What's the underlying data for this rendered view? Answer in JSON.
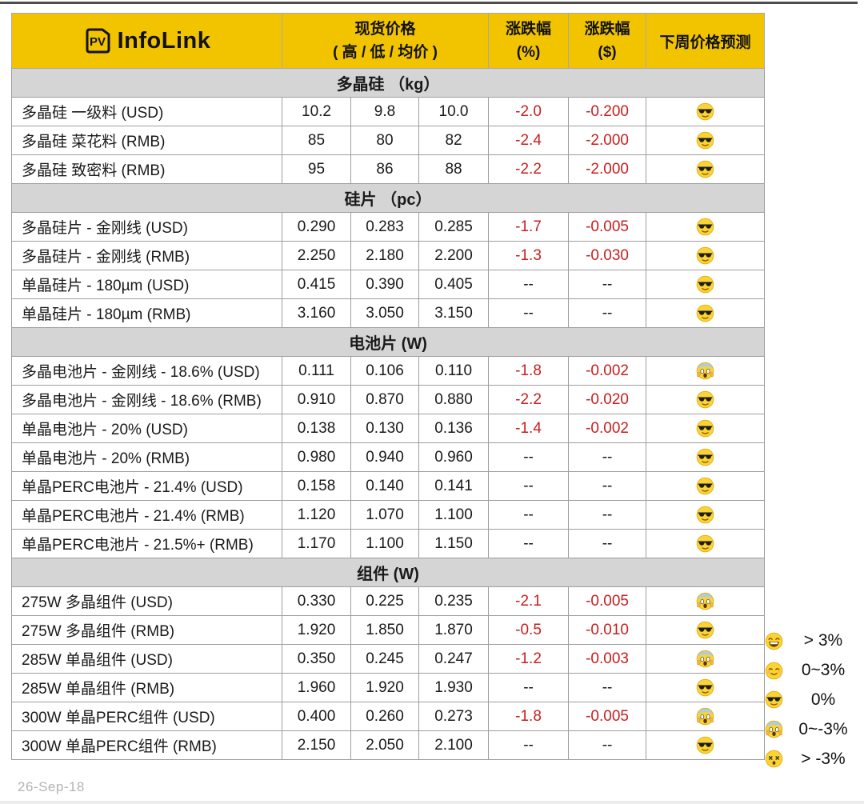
{
  "header": {
    "logo": {
      "pv": "PV",
      "infolink": "InfoLink"
    },
    "spot_price_title": "现货价格",
    "spot_price_subtitle": "( 高 / 低 / 均价 )",
    "change_pct_title": "涨跌幅",
    "change_pct_unit": "(%)",
    "change_usd_title": "涨跌幅",
    "change_usd_unit": "($)",
    "forecast_title": "下周价格预测"
  },
  "colors": {
    "header_yellow": "#F2C400",
    "section_gray": "#D5D5D5",
    "negative_red": "#C81E1E",
    "border_gray": "#9e9e9e",
    "emoji_yellow": "#FBD433"
  },
  "table": {
    "sections": [
      {
        "title": "多晶硅 （kg）",
        "rows": [
          {
            "name": "多晶硅 一级料 (USD)",
            "high": "10.2",
            "low": "9.8",
            "avg": "10.0",
            "pct": "-2.0",
            "usd": "-0.200",
            "forecast": "sunglasses"
          },
          {
            "name": "多晶硅 菜花料 (RMB)",
            "high": "85",
            "low": "80",
            "avg": "82",
            "pct": "-2.4",
            "usd": "-2.000",
            "forecast": "sunglasses"
          },
          {
            "name": "多晶硅 致密料 (RMB)",
            "high": "95",
            "low": "86",
            "avg": "88",
            "pct": "-2.2",
            "usd": "-2.000",
            "forecast": "sunglasses"
          }
        ]
      },
      {
        "title": "硅片 （pc）",
        "rows": [
          {
            "name": "多晶硅片 - 金刚线 (USD)",
            "high": "0.290",
            "low": "0.283",
            "avg": "0.285",
            "pct": "-1.7",
            "usd": "-0.005",
            "forecast": "sunglasses"
          },
          {
            "name": "多晶硅片 - 金刚线 (RMB)",
            "high": "2.250",
            "low": "2.180",
            "avg": "2.200",
            "pct": "-1.3",
            "usd": "-0.030",
            "forecast": "sunglasses"
          },
          {
            "name": "单晶硅片 - 180µm (USD)",
            "high": "0.415",
            "low": "0.390",
            "avg": "0.405",
            "pct": "--",
            "usd": "--",
            "forecast": "sunglasses"
          },
          {
            "name": "单晶硅片 - 180µm (RMB)",
            "high": "3.160",
            "low": "3.050",
            "avg": "3.150",
            "pct": "--",
            "usd": "--",
            "forecast": "sunglasses"
          }
        ]
      },
      {
        "title": "电池片 (W)",
        "rows": [
          {
            "name": "多晶电池片 - 金刚线 - 18.6% (USD)",
            "high": "0.111",
            "low": "0.106",
            "avg": "0.110",
            "pct": "-1.8",
            "usd": "-0.002",
            "forecast": "scream"
          },
          {
            "name": "多晶电池片 - 金刚线 - 18.6% (RMB)",
            "high": "0.910",
            "low": "0.870",
            "avg": "0.880",
            "pct": "-2.2",
            "usd": "-0.020",
            "forecast": "sunglasses"
          },
          {
            "name": "单晶电池片 - 20% (USD)",
            "high": "0.138",
            "low": "0.130",
            "avg": "0.136",
            "pct": "-1.4",
            "usd": "-0.002",
            "forecast": "sunglasses"
          },
          {
            "name": "单晶电池片 - 20% (RMB)",
            "high": "0.980",
            "low": "0.940",
            "avg": "0.960",
            "pct": "--",
            "usd": "--",
            "forecast": "sunglasses"
          },
          {
            "name": "单晶PERC电池片 - 21.4% (USD)",
            "high": "0.158",
            "low": "0.140",
            "avg": "0.141",
            "pct": "--",
            "usd": "--",
            "forecast": "sunglasses"
          },
          {
            "name": "单晶PERC电池片 - 21.4% (RMB)",
            "high": "1.120",
            "low": "1.070",
            "avg": "1.100",
            "pct": "--",
            "usd": "--",
            "forecast": "sunglasses"
          },
          {
            "name": "单晶PERC电池片 - 21.5%+ (RMB)",
            "high": "1.170",
            "low": "1.100",
            "avg": "1.150",
            "pct": "--",
            "usd": "--",
            "forecast": "sunglasses"
          }
        ]
      },
      {
        "title": "组件 (W)",
        "rows": [
          {
            "name": "275W 多晶组件 (USD)",
            "high": "0.330",
            "low": "0.225",
            "avg": "0.235",
            "pct": "-2.1",
            "usd": "-0.005",
            "forecast": "scream"
          },
          {
            "name": "275W 多晶组件 (RMB)",
            "high": "1.920",
            "low": "1.850",
            "avg": "1.870",
            "pct": "-0.5",
            "usd": "-0.010",
            "forecast": "sunglasses"
          },
          {
            "name": "285W 单晶组件 (USD)",
            "high": "0.350",
            "low": "0.245",
            "avg": "0.247",
            "pct": "-1.2",
            "usd": "-0.003",
            "forecast": "scream"
          },
          {
            "name": "285W 单晶组件 (RMB)",
            "high": "1.960",
            "low": "1.920",
            "avg": "1.930",
            "pct": "--",
            "usd": "--",
            "forecast": "sunglasses"
          },
          {
            "name": "300W 单晶PERC组件 (USD)",
            "high": "0.400",
            "low": "0.260",
            "avg": "0.273",
            "pct": "-1.8",
            "usd": "-0.005",
            "forecast": "scream"
          },
          {
            "name": "300W 单晶PERC组件 (RMB)",
            "high": "2.150",
            "low": "2.050",
            "avg": "2.100",
            "pct": "--",
            "usd": "--",
            "forecast": "sunglasses"
          }
        ]
      }
    ]
  },
  "legend": [
    {
      "emoji": "grin",
      "label": "> 3%"
    },
    {
      "emoji": "smile",
      "label": "0~3%"
    },
    {
      "emoji": "sunglasses",
      "label": "0%"
    },
    {
      "emoji": "scream",
      "label": "0~-3%"
    },
    {
      "emoji": "dizzy",
      "label": "> -3%"
    }
  ],
  "footer": {
    "date": "26-Sep-18"
  }
}
